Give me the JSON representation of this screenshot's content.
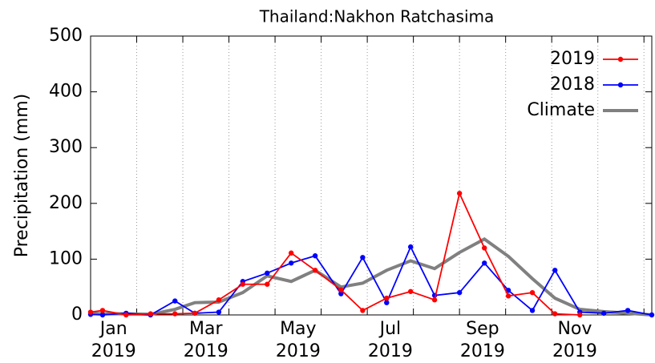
{
  "chart_data": {
    "type": "line",
    "title": "Thailand:Nakhon Ratchasima",
    "y_label": "Precipitation (mm)",
    "x": [
      0,
      0.26,
      0.77,
      1.3,
      1.83,
      2.26,
      2.78,
      3.3,
      3.83,
      4.35,
      4.87,
      5.43,
      5.9,
      6.42,
      6.94,
      7.46,
      8.0,
      8.54,
      9.06,
      9.58,
      10.07,
      10.61,
      11.13,
      11.65,
      12.17
    ],
    "series": [
      {
        "name": "2019",
        "color": "#ff0000",
        "marker": true,
        "values": [
          5,
          8,
          0,
          2,
          2,
          3,
          27,
          55,
          55,
          111,
          80,
          45,
          8,
          30,
          42,
          27,
          218,
          120,
          34,
          40,
          2,
          0,
          null,
          null,
          null
        ]
      },
      {
        "name": "2018",
        "color": "#0000ff",
        "marker": true,
        "values": [
          1,
          0,
          3,
          0,
          25,
          3,
          5,
          60,
          75,
          93,
          106,
          38,
          103,
          22,
          122,
          35,
          40,
          93,
          44,
          8,
          80,
          5,
          3,
          8,
          0
        ]
      },
      {
        "name": "Climate",
        "color": "#808080",
        "marker": false,
        "values": [
          3,
          2,
          2,
          1,
          10,
          22,
          23,
          40,
          70,
          60,
          80,
          50,
          57,
          80,
          97,
          83,
          112,
          136,
          105,
          65,
          30,
          10,
          6,
          3,
          0
        ]
      }
    ],
    "xlim": [
      0,
      12.17
    ],
    "xticks": [
      {
        "value": 0.5,
        "label": [
          "Jan",
          "2019"
        ]
      },
      {
        "value": 2.5,
        "label": [
          "Mar",
          "2019"
        ]
      },
      {
        "value": 4.5,
        "label": [
          "May",
          "2019"
        ]
      },
      {
        "value": 6.5,
        "label": [
          "Jul",
          "2019"
        ]
      },
      {
        "value": 8.5,
        "label": [
          "Sep",
          "2019"
        ]
      },
      {
        "value": 10.5,
        "label": [
          "Nov",
          "2019"
        ]
      }
    ],
    "xminor": [
      1,
      2,
      3,
      4,
      5,
      6,
      7,
      8,
      9,
      10,
      11,
      12
    ],
    "xgrid": true,
    "ylim": [
      0,
      500
    ],
    "yticks": [
      0,
      100,
      200,
      300,
      400,
      500
    ],
    "legend": "top-right"
  }
}
